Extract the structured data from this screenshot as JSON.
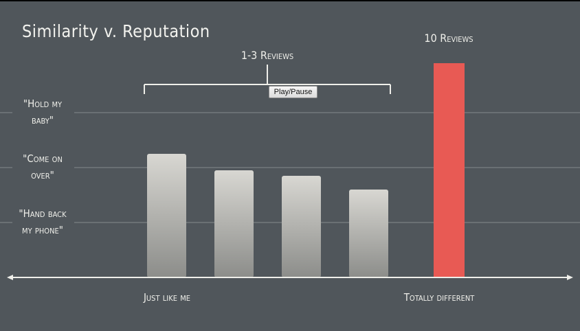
{
  "player": {
    "play_pause_label": "Play/Pause"
  },
  "colors": {
    "background": "#50565b",
    "bar_gradient_top": "#d8d7d2",
    "bar_gradient_bottom": "#8c8d8a",
    "highlight_bar": "#e85a54",
    "text": "#efefea"
  },
  "chart_data": {
    "type": "bar",
    "title": "Similarity v. Reputation",
    "xlabel": "",
    "ylabel": "",
    "x_axis_labels": [
      "Just like me",
      "Totally different"
    ],
    "y_tick_labels": [
      {
        "value": 3,
        "line1": "\"Hold my",
        "line2": "baby\""
      },
      {
        "value": 2,
        "line1": "\"Come on",
        "line2": "over\""
      },
      {
        "value": 1,
        "line1": "\"Hand back",
        "line2": "my phone\""
      }
    ],
    "ylim": [
      0,
      3.5
    ],
    "grid": true,
    "series": [
      {
        "values": [
          2.25,
          1.95,
          1.85,
          1.6
        ],
        "highlight": false
      },
      {
        "values": [
          3.9
        ],
        "highlight": true
      }
    ],
    "annotations": [
      {
        "text": "1-3 Reviews",
        "applies_to": "grey bars"
      },
      {
        "text": "10 Reviews",
        "applies_to": "red bar"
      }
    ]
  }
}
